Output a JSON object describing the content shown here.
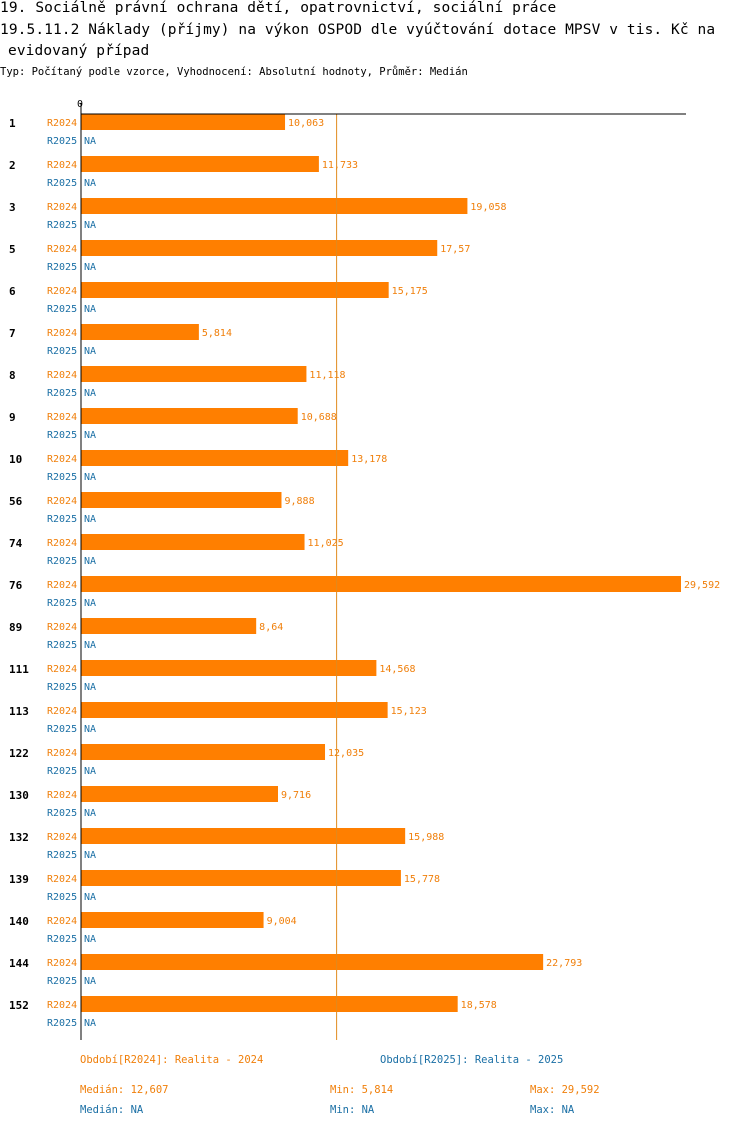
{
  "header": {
    "title_line1": "19. Sociálně právní ochrana dětí, opatrovnictví, sociální práce",
    "title_line2": "19.5.11.2 Náklady (příjmy) na výkon OSPOD dle vyúčtování dotace MPSV v tis. Kč na",
    "title_line3": "evidovaný případ",
    "subtitle": "Typ: Počítaný podle vzorce, Vyhodnocení: Absolutní hodnoty, Průměr: Medián"
  },
  "colors": {
    "series_2024": "#ff7f00",
    "label_2024": "#f07f0a",
    "label_2025": "#1a6fa5",
    "axis": "#000000",
    "median_line": "#e08a1e"
  },
  "chart_data": {
    "type": "bar",
    "orientation": "horizontal",
    "axis_zero_label": "0",
    "xlim": [
      0,
      29.592
    ],
    "median_line_value": 12.607,
    "categories": [
      "1",
      "2",
      "3",
      "5",
      "6",
      "7",
      "8",
      "9",
      "10",
      "56",
      "74",
      "76",
      "89",
      "111",
      "113",
      "122",
      "130",
      "132",
      "139",
      "140",
      "144",
      "152"
    ],
    "series": [
      {
        "name": "R2024",
        "values": [
          10.063,
          11.733,
          19.058,
          17.57,
          15.175,
          5.814,
          11.118,
          10.688,
          13.178,
          9.888,
          11.025,
          29.592,
          8.64,
          14.568,
          15.123,
          12.035,
          9.716,
          15.988,
          15.778,
          9.004,
          22.793,
          18.578
        ],
        "labels": [
          "10,063",
          "11,733",
          "19,058",
          "17,57",
          "15,175",
          "5,814",
          "11,118",
          "10,688",
          "13,178",
          "9,888",
          "11,025",
          "29,592",
          "8,64",
          "14,568",
          "15,123",
          "12,035",
          "9,716",
          "15,988",
          "15,778",
          "9,004",
          "22,793",
          "18,578"
        ]
      },
      {
        "name": "R2025",
        "values": [
          null,
          null,
          null,
          null,
          null,
          null,
          null,
          null,
          null,
          null,
          null,
          null,
          null,
          null,
          null,
          null,
          null,
          null,
          null,
          null,
          null,
          null
        ],
        "labels": [
          "NA",
          "NA",
          "NA",
          "NA",
          "NA",
          "NA",
          "NA",
          "NA",
          "NA",
          "NA",
          "NA",
          "NA",
          "NA",
          "NA",
          "NA",
          "NA",
          "NA",
          "NA",
          "NA",
          "NA",
          "NA",
          "NA"
        ]
      }
    ]
  },
  "legend": {
    "r2024": {
      "title": "Období[R2024]: Realita - 2024",
      "median": "Medián: 12,607",
      "min": "Min: 5,814",
      "max": "Max: 29,592"
    },
    "r2025": {
      "title": "Období[R2025]: Realita - 2025",
      "median": "Medián: NA",
      "min": "Min: NA",
      "max": "Max: NA"
    }
  }
}
